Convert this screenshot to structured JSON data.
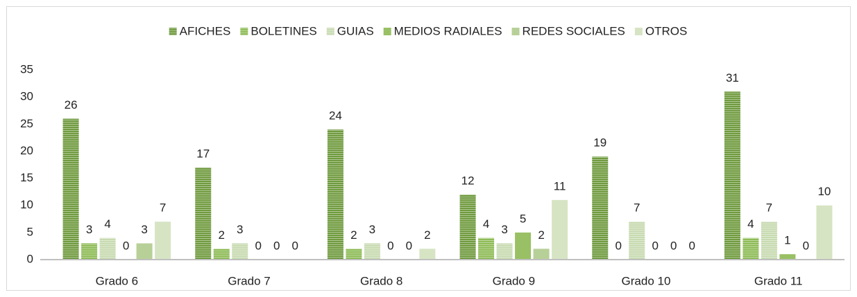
{
  "chart_data": {
    "type": "bar",
    "categories": [
      "Grado 6",
      "Grado 7",
      "Grado 8",
      "Grado 9",
      "Grado 10",
      "Grado 11"
    ],
    "series": [
      {
        "name": "AFICHES",
        "color": "#6f9a3e",
        "pattern": "stripes",
        "values": [
          26,
          17,
          24,
          12,
          19,
          31
        ]
      },
      {
        "name": "BOLETINES",
        "color": "#8dbb55",
        "pattern": "stripes",
        "values": [
          3,
          2,
          2,
          4,
          0,
          4
        ]
      },
      {
        "name": "GUIAS",
        "color": "#c7dab0",
        "pattern": "stripes",
        "values": [
          4,
          3,
          3,
          3,
          7,
          7
        ]
      },
      {
        "name": "MEDIOS RADIALES",
        "color": "#99c064",
        "pattern": "solid",
        "values": [
          0,
          0,
          0,
          5,
          0,
          1
        ]
      },
      {
        "name": "REDES SOCIALES",
        "color": "#b7d097",
        "pattern": "solid",
        "values": [
          3,
          0,
          0,
          2,
          0,
          0
        ]
      },
      {
        "name": "OTROS",
        "color": "#d6e4c4",
        "pattern": "solid",
        "values": [
          7,
          0,
          2,
          11,
          0,
          10
        ]
      }
    ],
    "ylim": [
      0,
      35
    ],
    "yticks": [
      0,
      5,
      10,
      15,
      20,
      25,
      30,
      35
    ],
    "grid": false,
    "legend": "top",
    "data_labels": true
  }
}
